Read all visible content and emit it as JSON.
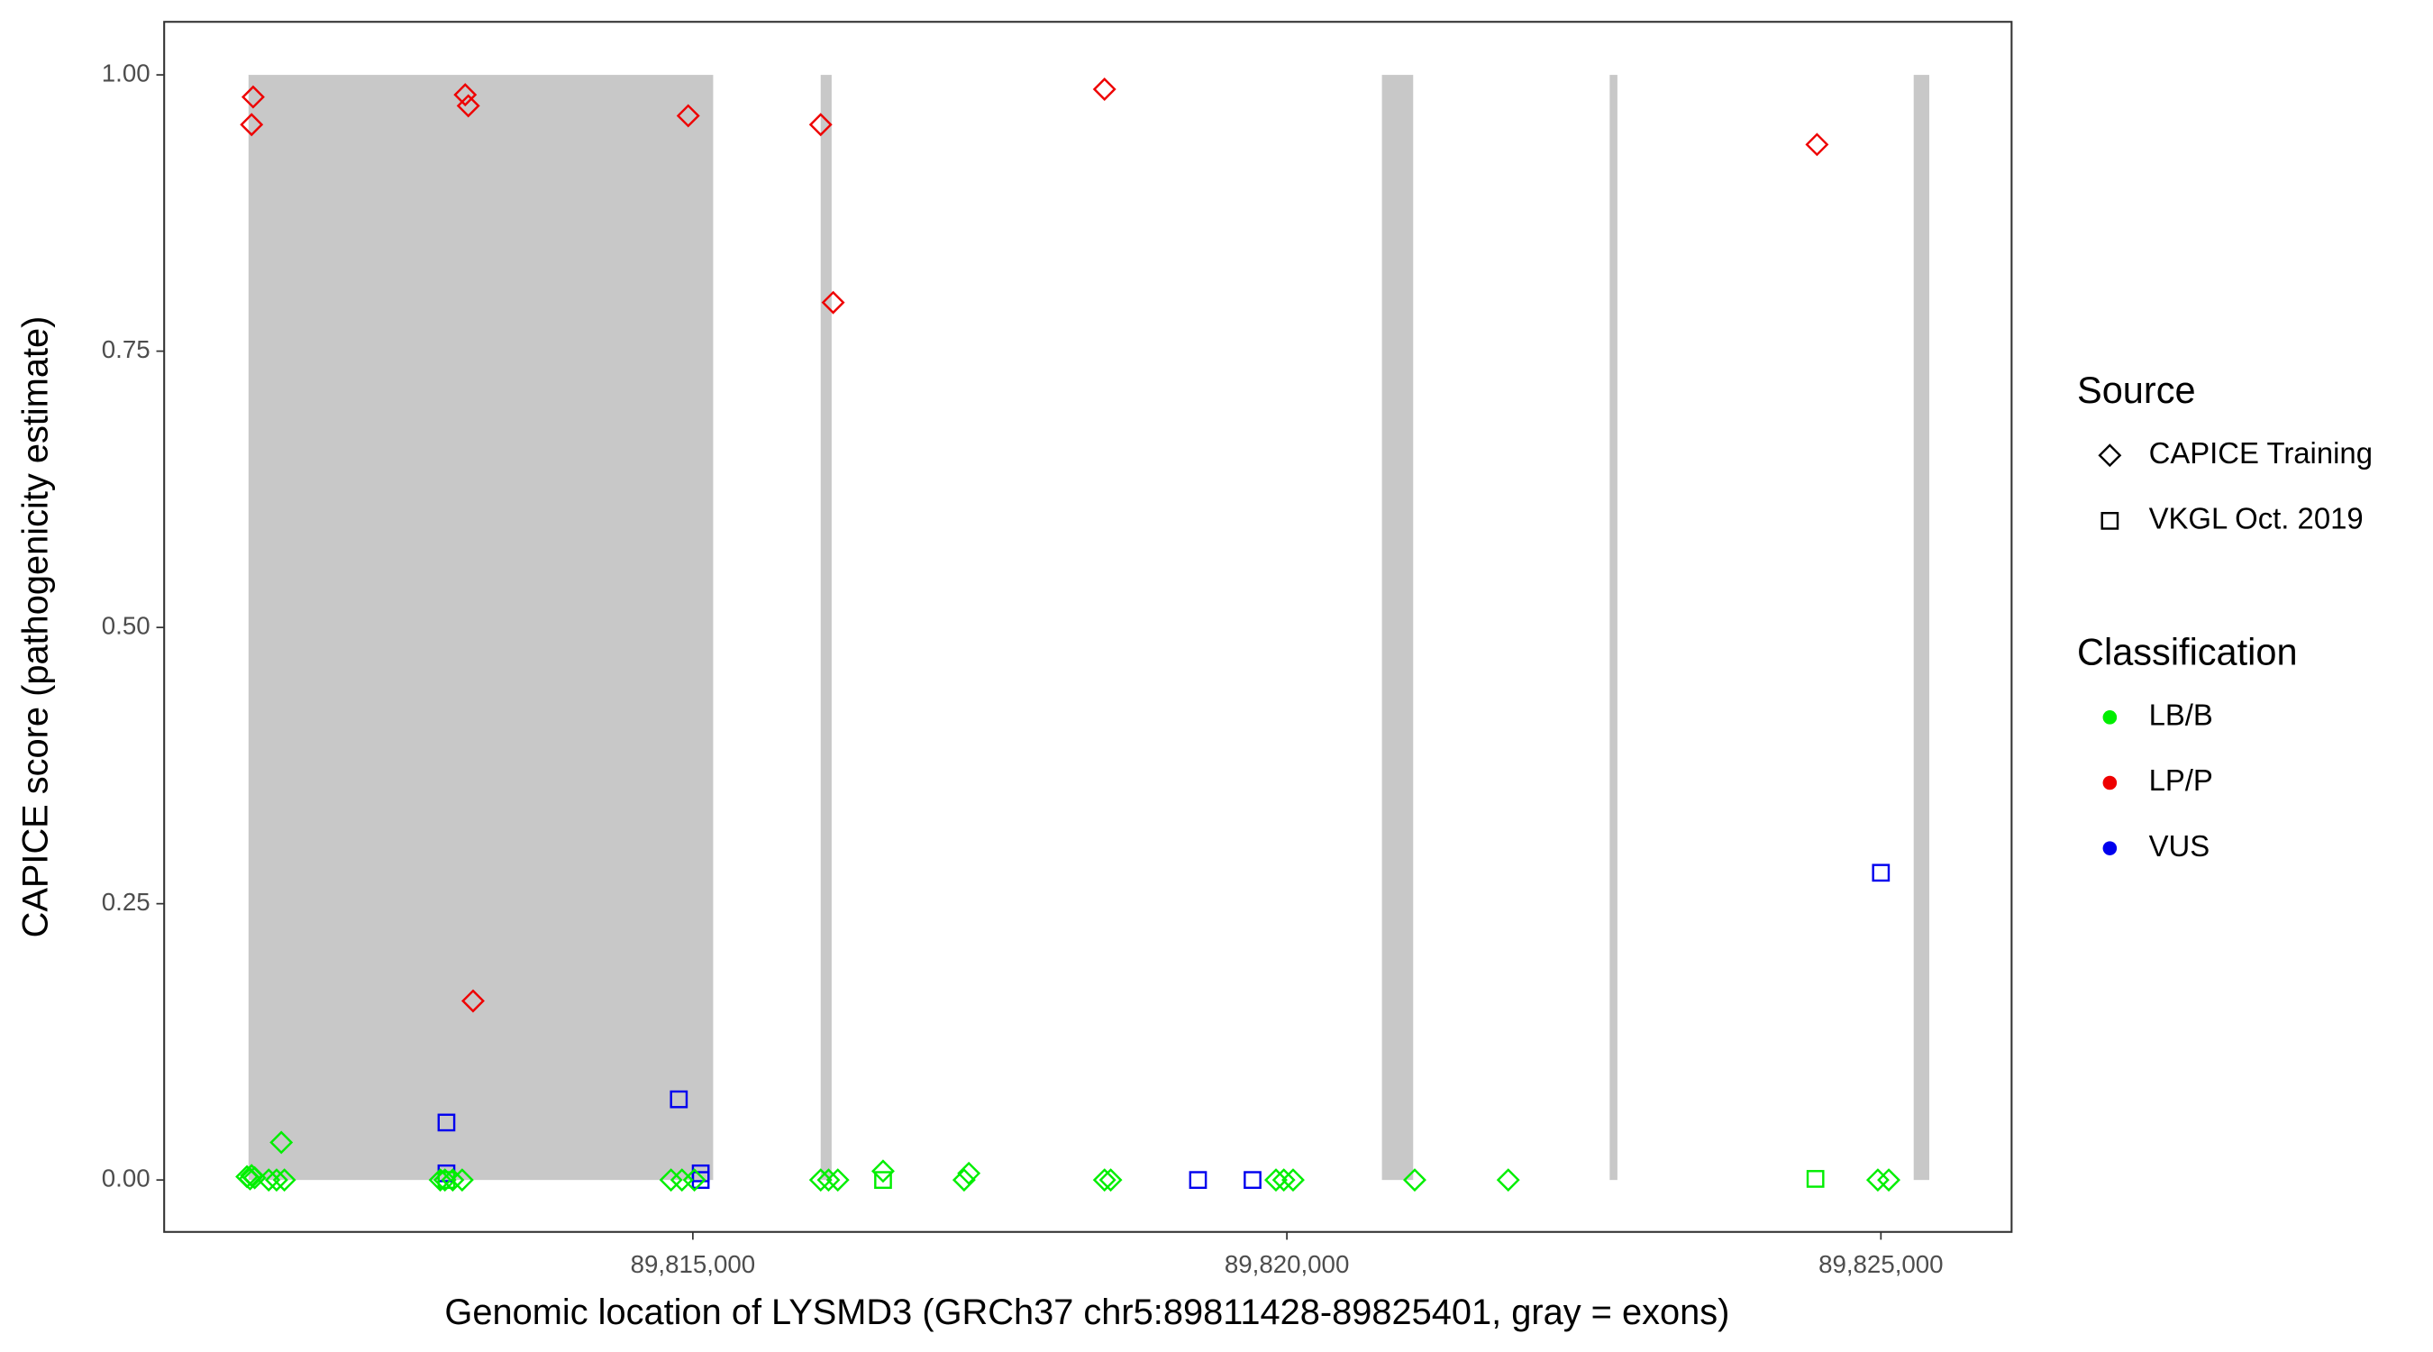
{
  "chart_data": {
    "type": "scatter",
    "xlabel": "Genomic location of LYSMD3 (GRCh37 chr5:89811428-89825401, gray = exons)",
    "ylabel": "CAPICE score (pathogenicity estimate)",
    "xlim": [
      89810550,
      89826100
    ],
    "ylim": [
      -0.047,
      1.048
    ],
    "xticks": [
      {
        "value": 89815000,
        "label": "89,815,000"
      },
      {
        "value": 89820000,
        "label": "89,820,000"
      },
      {
        "value": 89825000,
        "label": "89,825,000"
      }
    ],
    "yticks": [
      {
        "value": 0,
        "label": "0.00"
      },
      {
        "value": 0.25,
        "label": "0.25"
      },
      {
        "value": 0.5,
        "label": "0.50"
      },
      {
        "value": 0.75,
        "label": "0.75"
      },
      {
        "value": 1,
        "label": "1.00"
      }
    ],
    "grid": false,
    "exon_color": "#c8c8c8",
    "exon_range": [
      0,
      1
    ],
    "exons": [
      [
        89811260,
        89815171
      ],
      [
        89816076,
        89816168
      ],
      [
        89820800,
        89821063
      ],
      [
        89822717,
        89822782
      ],
      [
        89825276,
        89825407
      ]
    ],
    "legend_titles": [
      "Source",
      "Classification"
    ],
    "sources": [
      {
        "name": "CAPICE Training",
        "shape": "diamond"
      },
      {
        "name": "VKGL Oct. 2019",
        "shape": "square"
      }
    ],
    "classifications": [
      {
        "name": "LB/B",
        "color": "#00ee00"
      },
      {
        "name": "LP/P",
        "color": "#ee0000"
      },
      {
        "name": "VUS",
        "color": "#0000ee"
      }
    ],
    "series": [
      {
        "source": 0,
        "classification": 1,
        "x": [
          89811299,
          89811286,
          89813084,
          89813110,
          89813150,
          89814961,
          89816076,
          89816181,
          89818465,
          89824462
        ],
        "values": [
          0.98,
          0.955,
          0.982,
          0.972,
          0.162,
          0.963,
          0.955,
          0.794,
          0.987,
          0.937
        ]
      },
      {
        "source": 1,
        "classification": 2,
        "x": [
          89812926,
          89812926,
          89814882,
          89815066,
          89815066,
          89819252,
          89819711,
          89825000
        ],
        "values": [
          0.052,
          0.006,
          0.073,
          0.006,
          0,
          0,
          0,
          0.278
        ]
      },
      {
        "source": 0,
        "classification": 0,
        "x": [
          89811247,
          89811273,
          89811286,
          89811312,
          89811536,
          89811430,
          89811496,
          89811562,
          89812874,
          89812913,
          89812979,
          89813058,
          89814816,
          89814908,
          89815013,
          89816076,
          89816142,
          89816220,
          89816601,
          89817283,
          89817323,
          89818465,
          89818517,
          89819908,
          89819974,
          89820052,
          89821076,
          89821863,
          89824974,
          89825066
        ],
        "values": [
          0.003,
          0.001,
          0.004,
          0.002,
          0.034,
          0,
          0,
          0,
          0,
          0,
          0,
          0,
          0,
          0,
          0,
          0,
          0,
          0,
          0.008,
          0,
          0.006,
          0,
          0,
          0,
          0,
          0,
          0,
          0,
          0,
          0
        ]
      },
      {
        "source": 1,
        "classification": 0,
        "x": [
          89812926,
          89816601,
          89824449
        ],
        "values": [
          0,
          0,
          0.001
        ]
      }
    ]
  }
}
